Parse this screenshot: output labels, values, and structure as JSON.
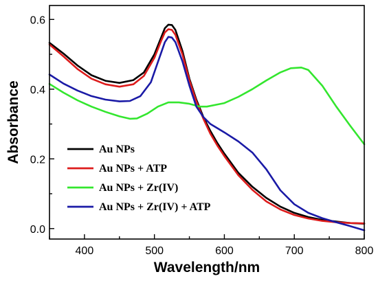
{
  "chart_data": {
    "type": "line",
    "title": "",
    "xlabel": "Wavelength/nm",
    "ylabel": "Absorbance",
    "xlim": [
      350,
      800
    ],
    "ylim": [
      -0.03,
      0.64
    ],
    "x_ticks": [
      400,
      500,
      600,
      700,
      800
    ],
    "y_ticks": [
      0.0,
      0.2,
      0.4,
      0.6
    ],
    "x_tick_labels": [
      "400",
      "500",
      "600",
      "700",
      "800"
    ],
    "y_tick_labels": [
      "0.0",
      "0.2",
      "0.4",
      "0.6"
    ],
    "grid": false,
    "legend_position": "bottom-left",
    "series": [
      {
        "name": "Au NPs",
        "color": "#000000",
        "points": [
          [
            350,
            0.533
          ],
          [
            370,
            0.502
          ],
          [
            390,
            0.468
          ],
          [
            410,
            0.44
          ],
          [
            430,
            0.424
          ],
          [
            450,
            0.418
          ],
          [
            470,
            0.426
          ],
          [
            485,
            0.448
          ],
          [
            500,
            0.5
          ],
          [
            510,
            0.55
          ],
          [
            515,
            0.575
          ],
          [
            520,
            0.585
          ],
          [
            525,
            0.584
          ],
          [
            530,
            0.57
          ],
          [
            540,
            0.51
          ],
          [
            550,
            0.43
          ],
          [
            560,
            0.37
          ],
          [
            570,
            0.32
          ],
          [
            580,
            0.28
          ],
          [
            590,
            0.245
          ],
          [
            600,
            0.215
          ],
          [
            620,
            0.16
          ],
          [
            640,
            0.12
          ],
          [
            660,
            0.088
          ],
          [
            680,
            0.063
          ],
          [
            700,
            0.045
          ],
          [
            720,
            0.033
          ],
          [
            740,
            0.025
          ],
          [
            760,
            0.02
          ],
          [
            780,
            0.016
          ],
          [
            800,
            0.014
          ]
        ]
      },
      {
        "name": "Au NPs + ATP",
        "color": "#dd1c1c",
        "points": [
          [
            350,
            0.528
          ],
          [
            370,
            0.494
          ],
          [
            390,
            0.458
          ],
          [
            410,
            0.43
          ],
          [
            430,
            0.414
          ],
          [
            450,
            0.407
          ],
          [
            470,
            0.414
          ],
          [
            485,
            0.438
          ],
          [
            500,
            0.49
          ],
          [
            510,
            0.54
          ],
          [
            515,
            0.563
          ],
          [
            520,
            0.572
          ],
          [
            525,
            0.57
          ],
          [
            530,
            0.556
          ],
          [
            540,
            0.5
          ],
          [
            550,
            0.425
          ],
          [
            560,
            0.365
          ],
          [
            570,
            0.315
          ],
          [
            580,
            0.272
          ],
          [
            590,
            0.238
          ],
          [
            600,
            0.208
          ],
          [
            620,
            0.153
          ],
          [
            640,
            0.111
          ],
          [
            660,
            0.078
          ],
          [
            680,
            0.055
          ],
          [
            700,
            0.039
          ],
          [
            720,
            0.029
          ],
          [
            740,
            0.022
          ],
          [
            760,
            0.018
          ],
          [
            780,
            0.016
          ],
          [
            800,
            0.015
          ]
        ]
      },
      {
        "name": "Au NPs + Zr(IV)",
        "color": "#33e62e",
        "points": [
          [
            350,
            0.415
          ],
          [
            370,
            0.39
          ],
          [
            390,
            0.368
          ],
          [
            410,
            0.35
          ],
          [
            430,
            0.335
          ],
          [
            450,
            0.322
          ],
          [
            465,
            0.315
          ],
          [
            475,
            0.316
          ],
          [
            490,
            0.33
          ],
          [
            505,
            0.35
          ],
          [
            520,
            0.362
          ],
          [
            535,
            0.362
          ],
          [
            550,
            0.358
          ],
          [
            565,
            0.35
          ],
          [
            575,
            0.35
          ],
          [
            590,
            0.356
          ],
          [
            600,
            0.36
          ],
          [
            620,
            0.378
          ],
          [
            640,
            0.4
          ],
          [
            660,
            0.425
          ],
          [
            680,
            0.448
          ],
          [
            695,
            0.46
          ],
          [
            710,
            0.462
          ],
          [
            720,
            0.455
          ],
          [
            740,
            0.41
          ],
          [
            760,
            0.35
          ],
          [
            780,
            0.295
          ],
          [
            800,
            0.242
          ]
        ]
      },
      {
        "name": "Au NPs + Zr(IV) + ATP",
        "color": "#1a1aa6",
        "points": [
          [
            350,
            0.442
          ],
          [
            370,
            0.416
          ],
          [
            390,
            0.396
          ],
          [
            410,
            0.38
          ],
          [
            430,
            0.37
          ],
          [
            450,
            0.365
          ],
          [
            465,
            0.366
          ],
          [
            480,
            0.38
          ],
          [
            495,
            0.42
          ],
          [
            505,
            0.478
          ],
          [
            515,
            0.535
          ],
          [
            520,
            0.55
          ],
          [
            525,
            0.548
          ],
          [
            530,
            0.535
          ],
          [
            540,
            0.48
          ],
          [
            550,
            0.41
          ],
          [
            560,
            0.35
          ],
          [
            570,
            0.32
          ],
          [
            580,
            0.3
          ],
          [
            590,
            0.288
          ],
          [
            600,
            0.276
          ],
          [
            620,
            0.25
          ],
          [
            640,
            0.218
          ],
          [
            660,
            0.17
          ],
          [
            680,
            0.11
          ],
          [
            700,
            0.07
          ],
          [
            720,
            0.045
          ],
          [
            740,
            0.03
          ],
          [
            760,
            0.018
          ],
          [
            780,
            0.007
          ],
          [
            800,
            -0.005
          ]
        ]
      }
    ]
  }
}
